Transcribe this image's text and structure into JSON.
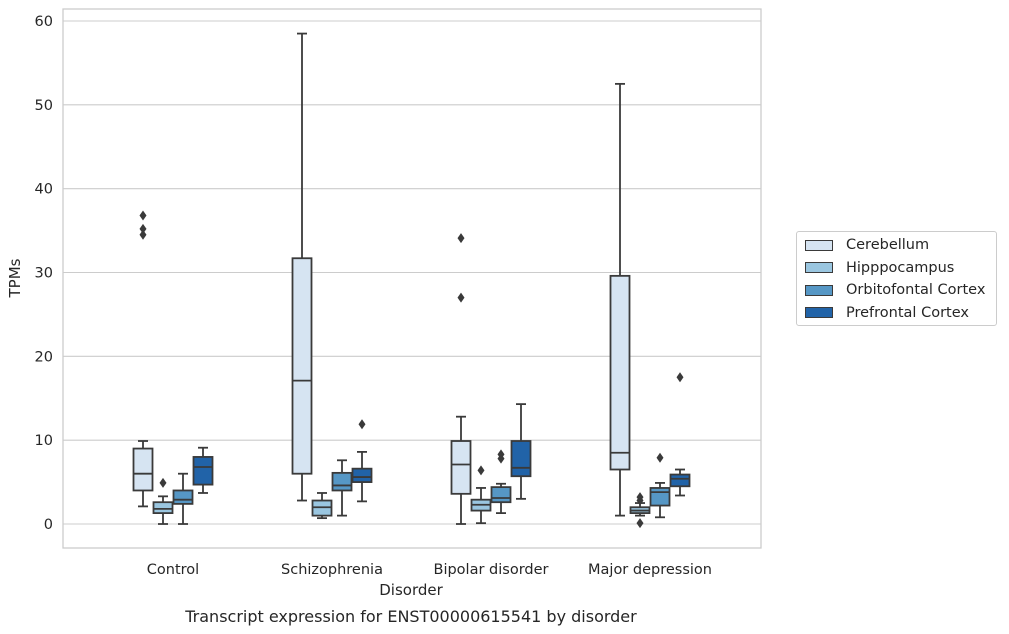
{
  "chart_data": {
    "type": "box",
    "title": "Transcript expression for ENST00000615541 by disorder",
    "xlabel": "Disorder",
    "ylabel": "TPMs",
    "ylim": [
      -2.8,
      61.8
    ],
    "yticks": [
      0,
      10,
      20,
      30,
      40,
      50,
      60
    ],
    "grid": true,
    "legend_position": "right",
    "categories": [
      "Control",
      "Schizophrenia",
      "Bipolar disorder",
      "Major depression"
    ],
    "series": [
      {
        "name": "Cerebellum",
        "color": "#d6e4f2",
        "boxes": [
          {
            "low": 2.1,
            "q1": 4.0,
            "median": 6.0,
            "q3": 9.0,
            "high": 9.9,
            "outliers": [
              34.5,
              35.2,
              36.8
            ]
          },
          {
            "low": 2.8,
            "q1": 6.0,
            "median": 17.1,
            "q3": 31.7,
            "high": 58.5,
            "outliers": []
          },
          {
            "low": 0.0,
            "q1": 3.6,
            "median": 7.1,
            "q3": 9.9,
            "high": 12.8,
            "outliers": [
              27.0,
              34.1
            ]
          },
          {
            "low": 1.0,
            "q1": 6.5,
            "median": 8.5,
            "q3": 29.6,
            "high": 52.5,
            "outliers": []
          }
        ]
      },
      {
        "name": "Hipppocampus",
        "color": "#9ac6e0",
        "boxes": [
          {
            "low": 0.0,
            "q1": 1.3,
            "median": 1.8,
            "q3": 2.6,
            "high": 3.3,
            "outliers": [
              4.9
            ]
          },
          {
            "low": 0.7,
            "q1": 1.0,
            "median": 2.0,
            "q3": 2.8,
            "high": 3.7,
            "outliers": []
          },
          {
            "low": 0.1,
            "q1": 1.6,
            "median": 2.3,
            "q3": 2.9,
            "high": 4.3,
            "outliers": [
              6.4
            ]
          },
          {
            "low": 1.0,
            "q1": 1.3,
            "median": 1.6,
            "q3": 2.0,
            "high": 2.5,
            "outliers": [
              0.1,
              2.8,
              3.2
            ]
          }
        ]
      },
      {
        "name": "Orbitofontal Cortex",
        "color": "#5697c5",
        "boxes": [
          {
            "low": 0.0,
            "q1": 2.4,
            "median": 2.9,
            "q3": 4.0,
            "high": 6.0,
            "outliers": []
          },
          {
            "low": 1.0,
            "q1": 4.0,
            "median": 4.6,
            "q3": 6.1,
            "high": 7.6,
            "outliers": []
          },
          {
            "low": 1.3,
            "q1": 2.6,
            "median": 3.1,
            "q3": 4.4,
            "high": 4.8,
            "outliers": [
              7.8,
              8.3
            ]
          },
          {
            "low": 0.8,
            "q1": 2.2,
            "median": 3.8,
            "q3": 4.3,
            "high": 4.9,
            "outliers": [
              7.9
            ]
          }
        ]
      },
      {
        "name": "Prefrontal Cortex",
        "color": "#2163a8",
        "boxes": [
          {
            "low": 3.7,
            "q1": 4.7,
            "median": 6.8,
            "q3": 8.0,
            "high": 9.1,
            "outliers": []
          },
          {
            "low": 2.7,
            "q1": 5.0,
            "median": 5.6,
            "q3": 6.6,
            "high": 8.6,
            "outliers": [
              11.9
            ]
          },
          {
            "low": 3.0,
            "q1": 5.7,
            "median": 6.7,
            "q3": 9.9,
            "high": 14.3,
            "outliers": []
          },
          {
            "low": 3.4,
            "q1": 4.5,
            "median": 5.4,
            "q3": 5.9,
            "high": 6.5,
            "outliers": [
              17.5
            ]
          }
        ]
      }
    ]
  }
}
